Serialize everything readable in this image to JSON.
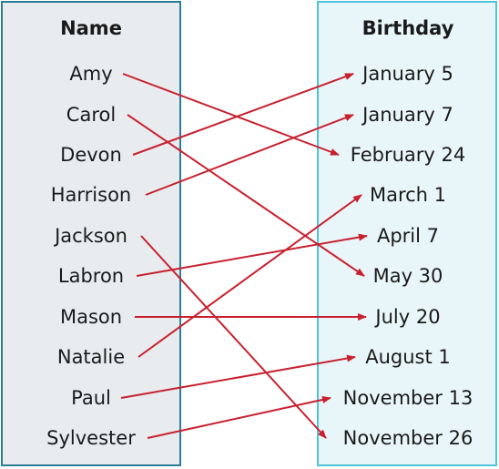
{
  "name_column": {
    "header": "Name",
    "items": [
      "Amy",
      "Carol",
      "Devon",
      "Harrison",
      "Jackson",
      "Labron",
      "Mason",
      "Natalie",
      "Paul",
      "Sylvester"
    ]
  },
  "birthday_column": {
    "header": "Birthday",
    "items": [
      "January 5",
      "January 7",
      "February 24",
      "March 1",
      "April 7",
      "May 30",
      "July 20",
      "August 1",
      "November 13",
      "November 26"
    ]
  },
  "mappings": [
    {
      "name": "Amy",
      "birthday": "February 24"
    },
    {
      "name": "Carol",
      "birthday": "May 30"
    },
    {
      "name": "Devon",
      "birthday": "January 5"
    },
    {
      "name": "Harrison",
      "birthday": "January 7"
    },
    {
      "name": "Jackson",
      "birthday": "November 26"
    },
    {
      "name": "Labron",
      "birthday": "April 7"
    },
    {
      "name": "Mason",
      "birthday": "July 20"
    },
    {
      "name": "Natalie",
      "birthday": "March 1"
    },
    {
      "name": "Paul",
      "birthday": "August 1"
    },
    {
      "name": "Sylvester",
      "birthday": "November 13"
    }
  ],
  "colors": {
    "arrow": "#c8202f",
    "name_box_fill": "#e8ecef",
    "name_box_border": "#2b7d96",
    "birthday_box_fill": "#e9f6f9",
    "birthday_box_border": "#4fc3d9"
  }
}
